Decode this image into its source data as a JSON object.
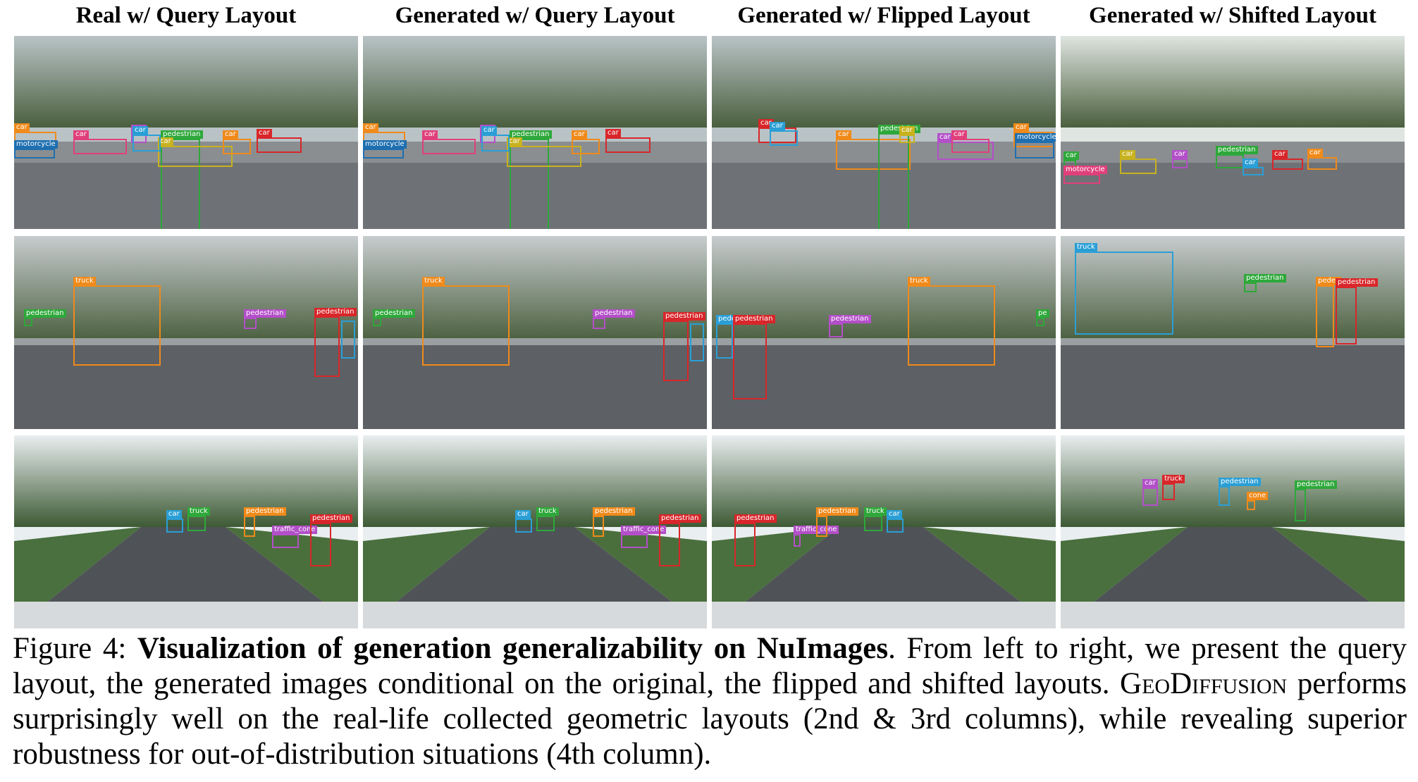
{
  "headers": [
    "Real w/ Query Layout",
    "Generated w/ Query Layout",
    "Generated w/ Flipped Layout",
    "Generated w/ Shifted Layout"
  ],
  "scene_image_descriptions": [
    "Row 1: parking lot scene with trees and parked cars",
    "Row 2: street corner with truck and pedestrians",
    "Row 3: road perspective with trees and buildings"
  ],
  "colors": {
    "car": "#e0407a",
    "pedestrian": "#2ea83a",
    "motorcycle": "#1e6fb0",
    "truck": "#f08a1a",
    "traffic_cone": "#9b59d0",
    "red": "#d8262a",
    "cyan": "#2a9fd6",
    "yellow": "#c8b21e",
    "purple": "#b34fc8",
    "blue": "#2f7fd0"
  },
  "panels": [
    {
      "row": 0,
      "col": 0,
      "boxes": [
        {
          "label": "car",
          "color": "#f08a1a"
        },
        {
          "label": "motorcycle",
          "color": "#1e6fb0"
        },
        {
          "label": "car",
          "color": "#e0407a"
        },
        {
          "label": "car",
          "color": "#b34fc8"
        },
        {
          "label": "pedestrian",
          "color": "#2ea83a"
        },
        {
          "label": "car",
          "color": "#c8b21e"
        },
        {
          "label": "car",
          "color": "#f08a1a"
        },
        {
          "label": "car",
          "color": "#d8262a"
        },
        {
          "label": "car",
          "color": "#2a9fd6"
        }
      ]
    },
    {
      "row": 0,
      "col": 1,
      "boxes": [
        {
          "label": "car",
          "color": "#f08a1a"
        },
        {
          "label": "motorcycle",
          "color": "#1e6fb0"
        },
        {
          "label": "car",
          "color": "#e0407a"
        },
        {
          "label": "car",
          "color": "#b34fc8"
        },
        {
          "label": "pedestrian",
          "color": "#2ea83a"
        },
        {
          "label": "car",
          "color": "#c8b21e"
        },
        {
          "label": "car",
          "color": "#f08a1a"
        },
        {
          "label": "car",
          "color": "#d8262a"
        },
        {
          "label": "car",
          "color": "#2a9fd6"
        }
      ]
    },
    {
      "row": 0,
      "col": 2,
      "boxes": [
        {
          "label": "car",
          "color": "#d8262a"
        },
        {
          "label": "car",
          "color": "#2a9fd6"
        },
        {
          "label": "car",
          "color": "#f08a1a"
        },
        {
          "label": "pedestrian",
          "color": "#2ea83a"
        },
        {
          "label": "car",
          "color": "#c8b21e"
        },
        {
          "label": "car",
          "color": "#b34fc8"
        },
        {
          "label": "car",
          "color": "#e0407a"
        },
        {
          "label": "car",
          "color": "#f08a1a"
        },
        {
          "label": "motorcycle",
          "color": "#1e6fb0"
        }
      ]
    },
    {
      "row": 0,
      "col": 3,
      "boxes": [
        {
          "label": "car",
          "color": "#2ea83a"
        },
        {
          "label": "motorcycle",
          "color": "#e0407a"
        },
        {
          "label": "car",
          "color": "#c8b21e"
        },
        {
          "label": "car",
          "color": "#b34fc8"
        },
        {
          "label": "pedestrian",
          "color": "#2ea83a"
        },
        {
          "label": "car",
          "color": "#2a9fd6"
        },
        {
          "label": "car",
          "color": "#d8262a"
        },
        {
          "label": "car",
          "color": "#f08a1a"
        }
      ]
    },
    {
      "row": 1,
      "col": 0,
      "boxes": [
        {
          "label": "truck",
          "color": "#f08a1a"
        },
        {
          "label": "pedestrian",
          "color": "#2ea83a"
        },
        {
          "label": "pedestrian",
          "color": "#b34fc8"
        },
        {
          "label": "pedestrian",
          "color": "#d8262a"
        },
        {
          "label": "",
          "color": "#2a9fd6"
        }
      ]
    },
    {
      "row": 1,
      "col": 1,
      "boxes": [
        {
          "label": "truck",
          "color": "#f08a1a"
        },
        {
          "label": "pedestrian",
          "color": "#2ea83a"
        },
        {
          "label": "pedestrian",
          "color": "#b34fc8"
        },
        {
          "label": "pedestrian",
          "color": "#d8262a"
        },
        {
          "label": "",
          "color": "#2a9fd6"
        }
      ]
    },
    {
      "row": 1,
      "col": 2,
      "boxes": [
        {
          "label": "pede",
          "color": "#2a9fd6"
        },
        {
          "label": "pedestrian",
          "color": "#d8262a"
        },
        {
          "label": "pedestrian",
          "color": "#b34fc8"
        },
        {
          "label": "truck",
          "color": "#f08a1a"
        },
        {
          "label": "pe",
          "color": "#2ea83a"
        }
      ]
    },
    {
      "row": 1,
      "col": 3,
      "boxes": [
        {
          "label": "truck",
          "color": "#2a9fd6"
        },
        {
          "label": "pedestrian",
          "color": "#2ea83a"
        },
        {
          "label": "pedes",
          "color": "#f08a1a"
        },
        {
          "label": "pedestrian",
          "color": "#d8262a"
        }
      ]
    },
    {
      "row": 2,
      "col": 0,
      "boxes": [
        {
          "label": "car",
          "color": "#2a9fd6"
        },
        {
          "label": "truck",
          "color": "#2ea83a"
        },
        {
          "label": "pedestrian",
          "color": "#f08a1a"
        },
        {
          "label": "traffic_cone",
          "color": "#b34fc8"
        },
        {
          "label": "pedestrian",
          "color": "#d8262a"
        }
      ]
    },
    {
      "row": 2,
      "col": 1,
      "boxes": [
        {
          "label": "car",
          "color": "#2a9fd6"
        },
        {
          "label": "truck",
          "color": "#2ea83a"
        },
        {
          "label": "pedestrian",
          "color": "#f08a1a"
        },
        {
          "label": "traffic_cone",
          "color": "#b34fc8"
        },
        {
          "label": "pedestrian",
          "color": "#d8262a"
        }
      ]
    },
    {
      "row": 2,
      "col": 2,
      "boxes": [
        {
          "label": "pedestrian",
          "color": "#d8262a"
        },
        {
          "label": "traffic_cone",
          "color": "#b34fc8"
        },
        {
          "label": "pedestrian",
          "color": "#f08a1a"
        },
        {
          "label": "truck",
          "color": "#2ea83a"
        },
        {
          "label": "car",
          "color": "#2a9fd6"
        }
      ]
    },
    {
      "row": 2,
      "col": 3,
      "boxes": [
        {
          "label": "car",
          "color": "#b34fc8"
        },
        {
          "label": "truck",
          "color": "#d8262a"
        },
        {
          "label": "pedestrian",
          "color": "#2a9fd6"
        },
        {
          "label": "cone",
          "color": "#f08a1a"
        },
        {
          "label": "pedestrian",
          "color": "#2ea83a"
        }
      ]
    }
  ],
  "caption": {
    "prefix": "Figure 4: ",
    "bold": "Visualization of generation generalizability on NuImages",
    "rest1": ". From left to right, we present the query layout, the generated images conditional on the original, the flipped and shifted layouts. ",
    "smallcaps": "GeoDiffusion",
    "rest2": " performs surprisingly well on the real-life collected geometric layouts (2nd & 3rd columns), while revealing superior robustness for out-of-distribution situations (4th column)."
  }
}
